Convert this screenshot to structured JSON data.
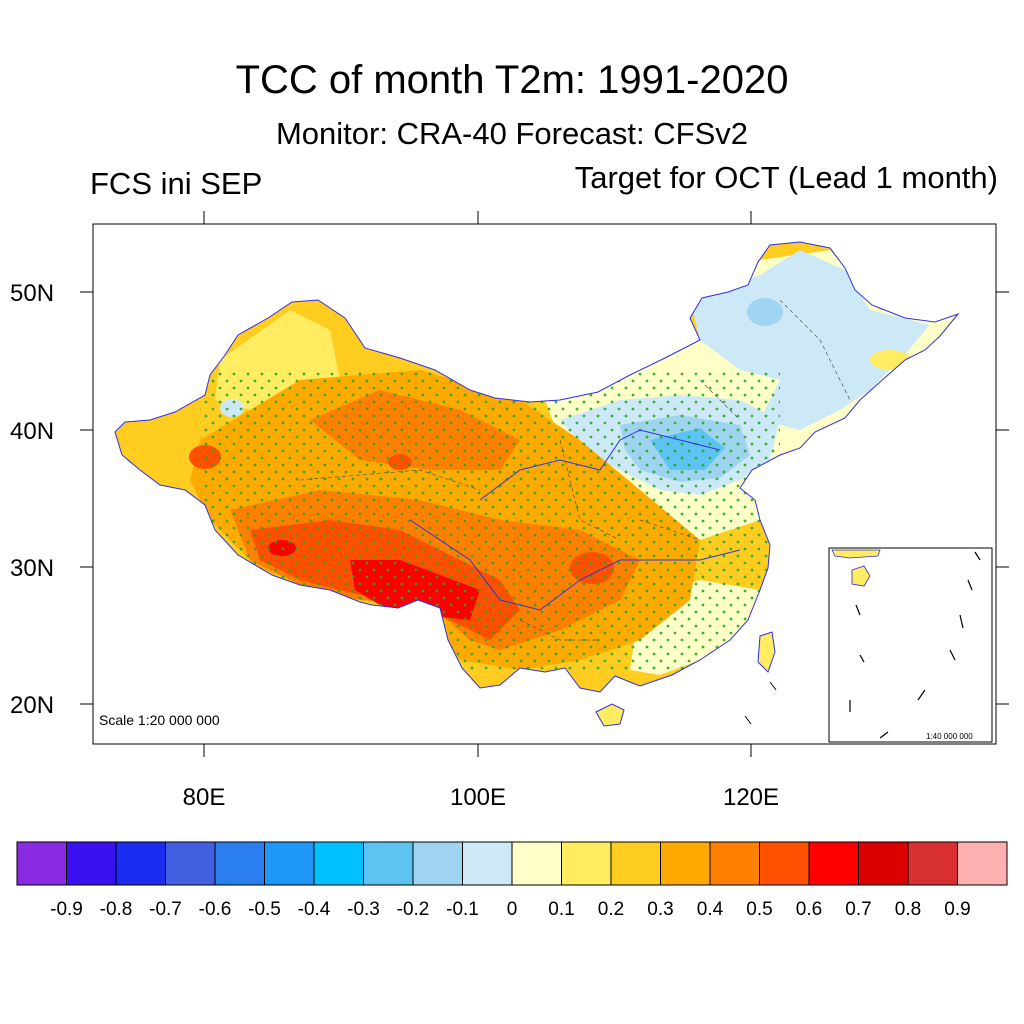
{
  "title": "TCC of month T2m: 1991-2020",
  "subtitle": "Monitor: CRA-40   Forecast: CFSv2",
  "left_label": "FCS ini SEP",
  "right_label": "Target for OCT (Lead 1 month)",
  "scale_main": "Scale 1:20 000 000",
  "scale_inset": "1:40 000 000",
  "axes": {
    "lat_labels": [
      "50N",
      "40N",
      "30N",
      "20N"
    ],
    "lon_labels": [
      "80E",
      "100E",
      "120E"
    ]
  },
  "colorbar": {
    "colors": [
      "#8a2be2",
      "#3a10f0",
      "#1a2cf0",
      "#4060e0",
      "#2a7ef0",
      "#1e96f5",
      "#00c0ff",
      "#5cc3f2",
      "#9fd4f0",
      "#cde9f8",
      "#ffffc8",
      "#ffec60",
      "#ffcc20",
      "#ffaa00",
      "#ff8000",
      "#ff5000",
      "#ff0000",
      "#dc0000",
      "#d83030",
      "#ffb0b0"
    ],
    "labels": [
      "-0.9",
      "-0.8",
      "-0.7",
      "-0.6",
      "-0.5",
      "-0.4",
      "-0.3",
      "-0.2",
      "-0.1",
      "0",
      "0.1",
      "0.2",
      "0.3",
      "0.4",
      "0.5",
      "0.6",
      "0.7",
      "0.8",
      "0.9"
    ]
  },
  "map_colors": {
    "land_base": "#ffcc20",
    "light_yellow": "#ffec60",
    "pale": "#ffffc8",
    "light_blue": "#cde9f8",
    "mid_blue": "#9fd4f0",
    "blue": "#5cc3f2",
    "orange": "#ffaa00",
    "dark_orange": "#ff8000",
    "red_orange": "#ff5000",
    "red": "#ff0000",
    "dark_red": "#dc0000",
    "boundary": "#3030e0",
    "stipple": "#22aa22"
  }
}
